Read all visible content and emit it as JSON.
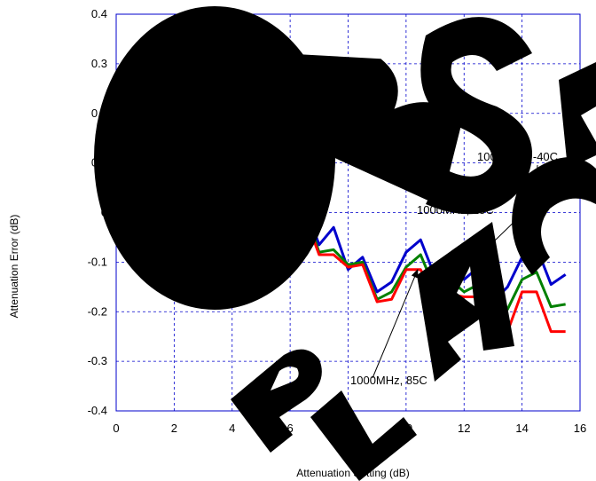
{
  "chart_data": {
    "type": "line",
    "title": "",
    "xlabel": "Attenuation Setting (dB)",
    "ylabel": "Attenuation Error (dB)",
    "xlim": [
      0,
      16
    ],
    "ylim": [
      -0.4,
      0.4
    ],
    "xticks": [
      "0",
      "2",
      "4",
      "6",
      "8",
      "10",
      "12",
      "14",
      "16"
    ],
    "yticks": [
      "0.4",
      "0.3",
      "0.2",
      "0.1",
      "0",
      "-0.1",
      "-0.2",
      "-0.3",
      "-0.4"
    ],
    "grid": true,
    "x": [
      0,
      0.5,
      1,
      1.5,
      2,
      2.5,
      3,
      3.5,
      4,
      4.5,
      5,
      5.5,
      6,
      6.5,
      7,
      7.5,
      8,
      8.5,
      9,
      9.5,
      10,
      10.5,
      11,
      11.5,
      12,
      12.5,
      13,
      13.5,
      14,
      14.5,
      15,
      15.5
    ],
    "series": [
      {
        "color": "#0000cc",
        "values": [
          0.0,
          0.015,
          -0.06,
          -0.035,
          0.02,
          0.038,
          -0.032,
          -0.03,
          -0.055,
          -0.03,
          -0.1,
          -0.075,
          0.0,
          0.015,
          -0.065,
          -0.03,
          -0.115,
          -0.09,
          -0.16,
          -0.14,
          -0.08,
          -0.055,
          -0.13,
          -0.105,
          -0.135,
          -0.11,
          -0.18,
          -0.15,
          -0.09,
          -0.07,
          -0.145,
          -0.125
        ]
      },
      {
        "color": "#008000",
        "values": [
          0.0,
          0.008,
          -0.06,
          -0.045,
          0.025,
          0.035,
          -0.04,
          -0.035,
          -0.045,
          -0.04,
          -0.11,
          -0.1,
          -0.003,
          0.005,
          -0.08,
          -0.075,
          -0.105,
          -0.1,
          -0.175,
          -0.16,
          -0.11,
          -0.085,
          -0.155,
          -0.135,
          -0.16,
          -0.145,
          -0.215,
          -0.195,
          -0.135,
          -0.12,
          -0.19,
          -0.185
        ]
      },
      {
        "color": "#ff0000",
        "values": [
          0.0,
          0.0,
          -0.06,
          -0.05,
          0.03,
          0.035,
          -0.04,
          -0.04,
          -0.04,
          -0.045,
          -0.11,
          -0.105,
          -0.003,
          -0.005,
          -0.085,
          -0.085,
          -0.11,
          -0.105,
          -0.18,
          -0.175,
          -0.115,
          -0.115,
          -0.175,
          -0.165,
          -0.17,
          -0.17,
          -0.245,
          -0.24,
          -0.16,
          -0.16,
          -0.24,
          -0.24
        ]
      }
    ],
    "annotations": [
      {
        "text": "1000MHz, -40C",
        "target": [
          14.3,
          -0.08
        ]
      },
      {
        "text": "1000MHz, 25C",
        "target": [
          11.5,
          -0.145
        ]
      },
      {
        "text": "1000MHz, 85C",
        "target": [
          10.4,
          -0.115
        ]
      }
    ]
  },
  "watermark": {
    "text": "OBSOLETE REPLACED BY",
    "color": "#000000"
  }
}
